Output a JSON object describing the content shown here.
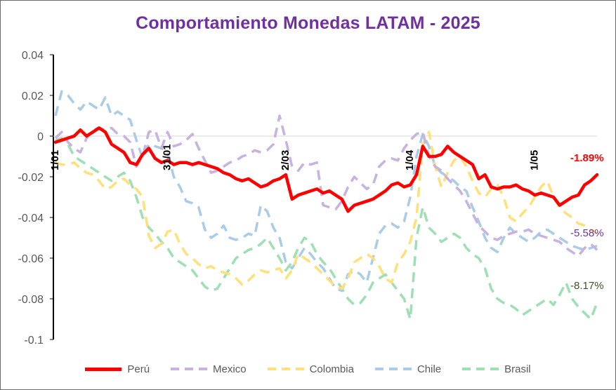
{
  "chart_data": {
    "type": "line",
    "title": "Comportamiento Monedas LATAM - 2025",
    "ylim": [
      -0.1,
      0.04
    ],
    "yticks": [
      "0.04",
      "0.02",
      "0",
      "-0.02",
      "-0.04",
      "-0.06",
      "-0.08",
      "-0.1"
    ],
    "date_labels": [
      {
        "label": "1/01",
        "x": 0
      },
      {
        "label": "31/01",
        "x": 18
      },
      {
        "label": "2/03",
        "x": 37
      },
      {
        "label": "1/04",
        "x": 57
      },
      {
        "label": "1/05",
        "x": 77
      }
    ],
    "x_count": 88,
    "grid": false,
    "legend_position": "bottom",
    "series": [
      {
        "name": "Perú",
        "color": "#ff0000",
        "style": "solid",
        "end_label": "-1.89%",
        "values": [
          -0.003,
          -0.002,
          -0.001,
          0.0,
          0.003,
          0.0,
          0.002,
          0.004,
          0.002,
          -0.004,
          -0.006,
          -0.008,
          -0.013,
          -0.014,
          -0.009,
          -0.006,
          -0.011,
          -0.013,
          -0.012,
          -0.014,
          -0.013,
          -0.013,
          -0.014,
          -0.013,
          -0.014,
          -0.015,
          -0.016,
          -0.018,
          -0.019,
          -0.021,
          -0.022,
          -0.021,
          -0.023,
          -0.025,
          -0.024,
          -0.022,
          -0.021,
          -0.019,
          -0.031,
          -0.029,
          -0.028,
          -0.027,
          -0.026,
          -0.028,
          -0.027,
          -0.029,
          -0.031,
          -0.037,
          -0.034,
          -0.033,
          -0.032,
          -0.031,
          -0.029,
          -0.027,
          -0.024,
          -0.023,
          -0.025,
          -0.024,
          -0.019,
          -0.005,
          -0.01,
          -0.01,
          -0.009,
          -0.005,
          -0.008,
          -0.01,
          -0.012,
          -0.014,
          -0.021,
          -0.019,
          -0.025,
          -0.026,
          -0.025,
          -0.025,
          -0.024,
          -0.026,
          -0.027,
          -0.029,
          -0.028,
          -0.029,
          -0.03,
          -0.034,
          -0.032,
          -0.03,
          -0.029,
          -0.024,
          -0.022,
          -0.019
        ]
      },
      {
        "name": "Mexico",
        "color": "#c7b2e0",
        "style": "dashed",
        "end_label": "-5.58%",
        "values": [
          -0.001,
          0.002,
          -0.003,
          -0.006,
          -0.008,
          -0.001,
          0.003,
          0.004,
          0.003,
          0.004,
          0.001,
          0.0,
          -0.003,
          -0.015,
          -0.01,
          0.002,
          0.003,
          -0.006,
          0.002,
          -0.005,
          -0.004,
          -0.002,
          0.001,
          -0.006,
          -0.012,
          -0.018,
          -0.017,
          -0.015,
          -0.013,
          -0.012,
          -0.01,
          -0.009,
          -0.007,
          -0.008,
          -0.007,
          -0.004,
          0.01,
          -0.002,
          -0.015,
          -0.017,
          -0.013,
          -0.014,
          -0.013,
          -0.034,
          -0.035,
          -0.036,
          -0.032,
          -0.025,
          -0.02,
          -0.023,
          -0.026,
          -0.024,
          -0.015,
          -0.012,
          -0.011,
          -0.012,
          -0.006,
          -0.002,
          0.001,
          0.002,
          -0.01,
          -0.015,
          -0.017,
          -0.021,
          -0.024,
          -0.027,
          -0.032,
          -0.038,
          -0.044,
          -0.047,
          -0.05,
          -0.051,
          -0.049,
          -0.048,
          -0.047,
          -0.047,
          -0.046,
          -0.048,
          -0.049,
          -0.05,
          -0.051,
          -0.052,
          -0.055,
          -0.057,
          -0.059,
          -0.055,
          -0.053,
          -0.056
        ]
      },
      {
        "name": "Colombia",
        "color": "#ffe07a",
        "style": "dashed",
        "end_label": "",
        "values": [
          -0.013,
          -0.014,
          -0.014,
          -0.013,
          -0.016,
          -0.018,
          -0.019,
          -0.022,
          -0.026,
          -0.025,
          -0.022,
          -0.021,
          -0.024,
          -0.026,
          -0.03,
          -0.049,
          -0.055,
          -0.053,
          -0.047,
          -0.046,
          -0.053,
          -0.058,
          -0.06,
          -0.063,
          -0.065,
          -0.064,
          -0.066,
          -0.067,
          -0.068,
          -0.07,
          -0.073,
          -0.071,
          -0.068,
          -0.066,
          -0.067,
          -0.066,
          -0.065,
          -0.07,
          -0.066,
          -0.058,
          -0.06,
          -0.062,
          -0.065,
          -0.068,
          -0.071,
          -0.074,
          -0.075,
          -0.07,
          -0.062,
          -0.06,
          -0.058,
          -0.06,
          -0.064,
          -0.07,
          -0.072,
          -0.062,
          -0.058,
          -0.052,
          -0.04,
          -0.004,
          0.002,
          -0.015,
          -0.025,
          -0.018,
          -0.012,
          -0.01,
          -0.015,
          -0.022,
          -0.028,
          -0.03,
          -0.026,
          -0.024,
          -0.03,
          -0.04,
          -0.042,
          -0.038,
          -0.035,
          -0.03,
          -0.025,
          -0.022,
          -0.03,
          -0.035,
          -0.038,
          -0.04,
          -0.043,
          -0.044,
          -0.046,
          -0.048
        ]
      },
      {
        "name": "Chile",
        "color": "#a9cce8",
        "style": "dashed",
        "end_label": "",
        "values": [
          0.01,
          0.022,
          0.02,
          0.016,
          0.013,
          0.017,
          0.015,
          0.013,
          0.019,
          0.01,
          0.012,
          0.01,
          0.008,
          -0.002,
          -0.011,
          -0.004,
          -0.005,
          -0.006,
          -0.008,
          -0.02,
          -0.025,
          -0.032,
          -0.033,
          -0.035,
          -0.046,
          -0.05,
          -0.048,
          -0.044,
          -0.05,
          -0.051,
          -0.05,
          -0.048,
          -0.049,
          -0.034,
          -0.037,
          -0.045,
          -0.05,
          -0.062,
          -0.065,
          -0.06,
          -0.055,
          -0.058,
          -0.062,
          -0.065,
          -0.07,
          -0.075,
          -0.076,
          -0.068,
          -0.066,
          -0.068,
          -0.072,
          -0.06,
          -0.048,
          -0.044,
          -0.043,
          -0.045,
          -0.042,
          -0.03,
          -0.01,
          0.001,
          -0.005,
          -0.015,
          -0.018,
          -0.02,
          -0.022,
          -0.025,
          -0.027,
          -0.035,
          -0.042,
          -0.05,
          -0.055,
          -0.057,
          -0.05,
          -0.045,
          -0.048,
          -0.05,
          -0.052,
          -0.05,
          -0.047,
          -0.046,
          -0.048,
          -0.05,
          -0.052,
          -0.054,
          -0.055,
          -0.056,
          -0.055,
          -0.054
        ]
      },
      {
        "name": "Brasil",
        "color": "#9ee0b4",
        "style": "dashed",
        "end_label": "-8.17%",
        "values": [
          -0.002,
          -0.001,
          -0.004,
          -0.01,
          -0.012,
          -0.014,
          -0.016,
          -0.018,
          -0.02,
          -0.022,
          -0.02,
          -0.018,
          -0.022,
          -0.03,
          -0.04,
          -0.045,
          -0.048,
          -0.052,
          -0.055,
          -0.06,
          -0.062,
          -0.064,
          -0.066,
          -0.07,
          -0.074,
          -0.076,
          -0.075,
          -0.07,
          -0.065,
          -0.06,
          -0.058,
          -0.056,
          -0.055,
          -0.053,
          -0.05,
          -0.055,
          -0.06,
          -0.066,
          -0.062,
          -0.055,
          -0.05,
          -0.052,
          -0.058,
          -0.062,
          -0.065,
          -0.07,
          -0.075,
          -0.08,
          -0.083,
          -0.082,
          -0.078,
          -0.072,
          -0.07,
          -0.068,
          -0.072,
          -0.076,
          -0.08,
          -0.09,
          -0.05,
          -0.035,
          -0.045,
          -0.048,
          -0.052,
          -0.05,
          -0.048,
          -0.05,
          -0.055,
          -0.058,
          -0.06,
          -0.065,
          -0.075,
          -0.08,
          -0.082,
          -0.083,
          -0.085,
          -0.088,
          -0.086,
          -0.084,
          -0.082,
          -0.08,
          -0.083,
          -0.078,
          -0.072,
          -0.08,
          -0.084,
          -0.087,
          -0.09,
          -0.082
        ]
      }
    ]
  }
}
